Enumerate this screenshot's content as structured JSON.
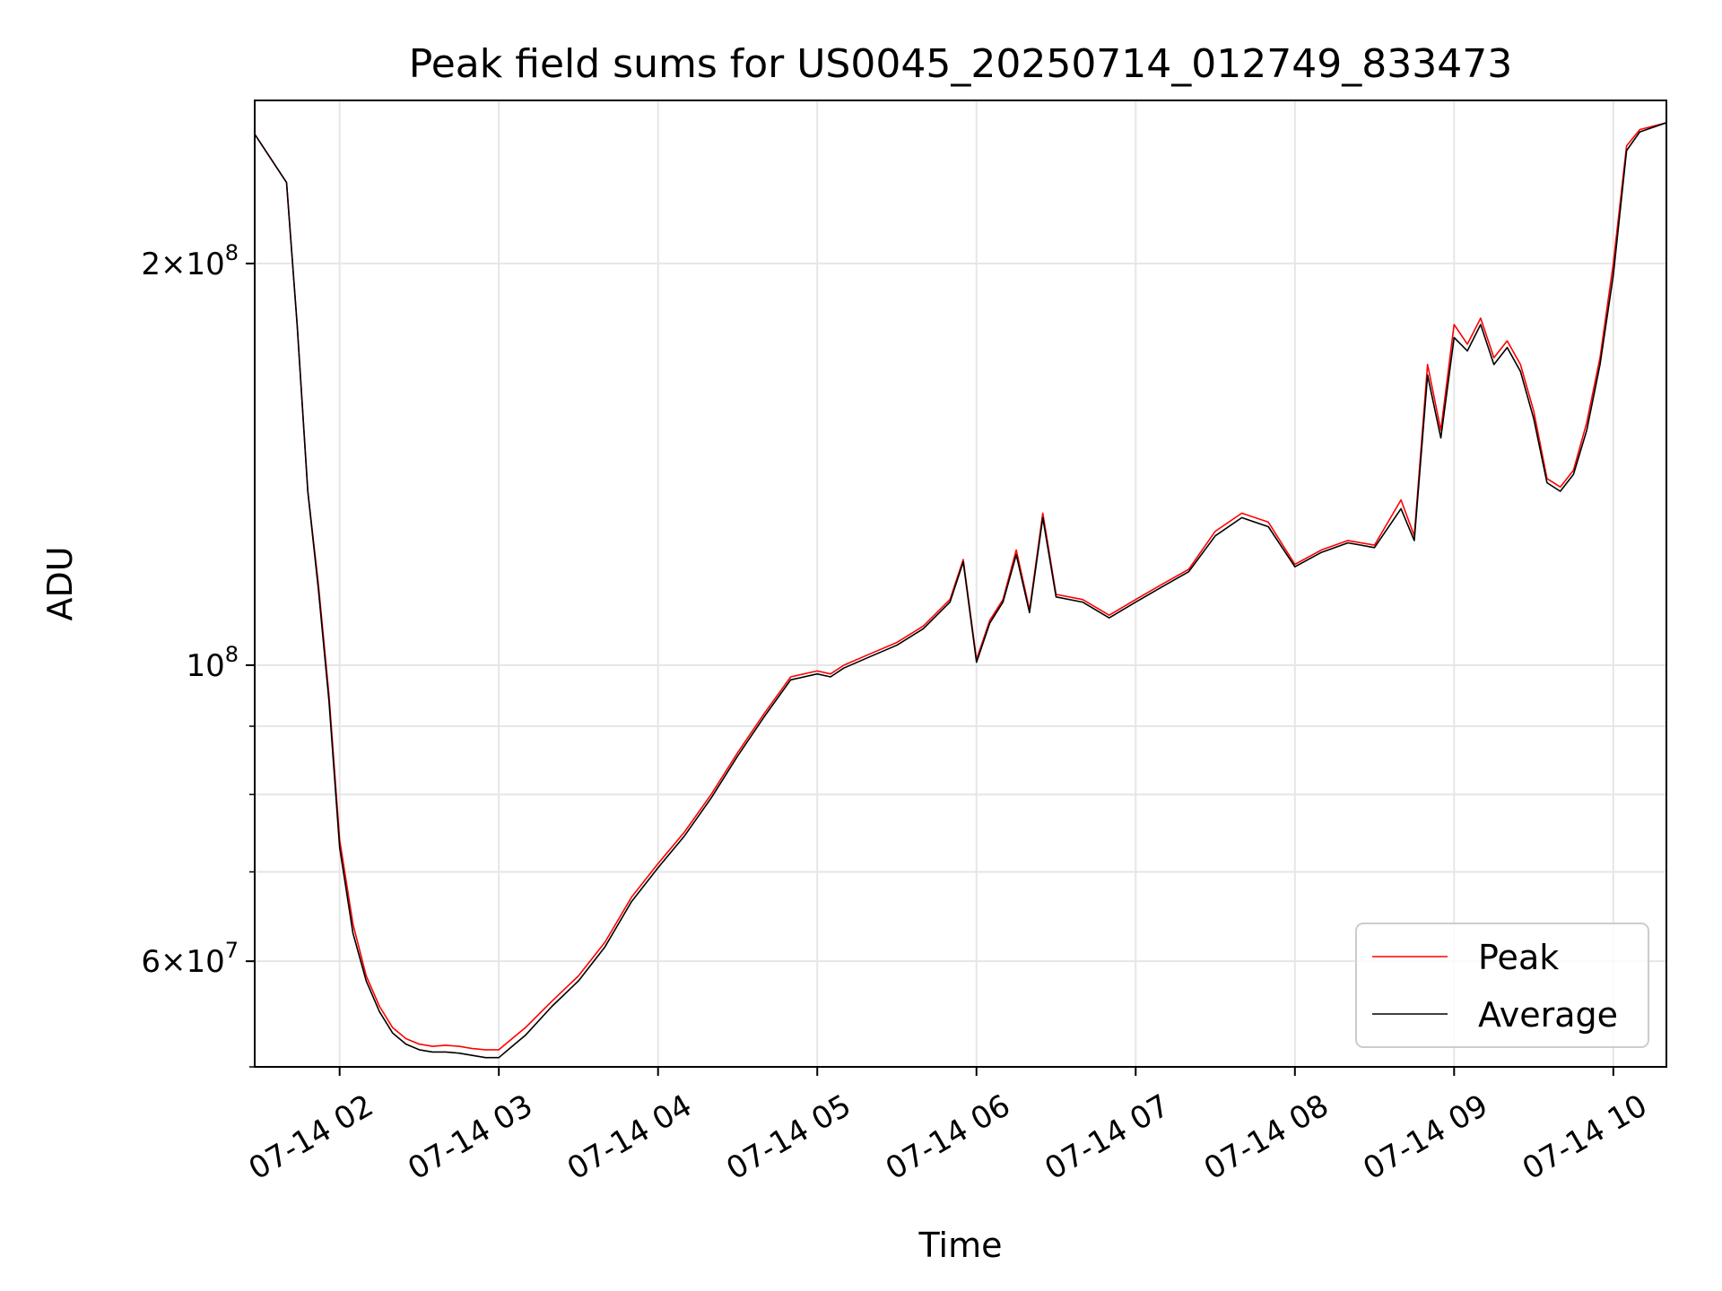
{
  "chart_data": {
    "type": "line",
    "title": "Peak field sums for US0045_20250714_012749_833473",
    "xlabel": "Time",
    "ylabel": "ADU",
    "y_scale": "log",
    "ylim": [
      50000000,
      265000000
    ],
    "xlim": [
      "2025-07-14 01:28",
      "2025-07-14 10:20"
    ],
    "grid": true,
    "legend_position": "lower right",
    "x_ticks": [
      {
        "t": "2025-07-14 02:00",
        "label": "07-14 02"
      },
      {
        "t": "2025-07-14 03:00",
        "label": "07-14 03"
      },
      {
        "t": "2025-07-14 04:00",
        "label": "07-14 04"
      },
      {
        "t": "2025-07-14 05:00",
        "label": "07-14 05"
      },
      {
        "t": "2025-07-14 06:00",
        "label": "07-14 06"
      },
      {
        "t": "2025-07-14 07:00",
        "label": "07-14 07"
      },
      {
        "t": "2025-07-14 08:00",
        "label": "07-14 08"
      },
      {
        "t": "2025-07-14 09:00",
        "label": "07-14 09"
      },
      {
        "t": "2025-07-14 10:00",
        "label": "07-14 10"
      }
    ],
    "y_ticks": [
      {
        "value": 60000000,
        "mantissa": "6",
        "base": "10",
        "exp": "7"
      },
      {
        "value": 100000000,
        "mantissa": "",
        "base": "10",
        "exp": "8"
      },
      {
        "value": 200000000,
        "mantissa": "2",
        "base": "10",
        "exp": "8"
      }
    ],
    "y_minor_ticks": [
      50000000,
      70000000,
      80000000,
      90000000
    ],
    "x": [
      "2025-07-14 01:28",
      "2025-07-14 01:40",
      "2025-07-14 01:44",
      "2025-07-14 01:48",
      "2025-07-14 01:52",
      "2025-07-14 01:56",
      "2025-07-14 02:00",
      "2025-07-14 02:05",
      "2025-07-14 02:10",
      "2025-07-14 02:15",
      "2025-07-14 02:20",
      "2025-07-14 02:25",
      "2025-07-14 02:30",
      "2025-07-14 02:35",
      "2025-07-14 02:40",
      "2025-07-14 02:45",
      "2025-07-14 02:50",
      "2025-07-14 02:55",
      "2025-07-14 03:00",
      "2025-07-14 03:05",
      "2025-07-14 03:10",
      "2025-07-14 03:20",
      "2025-07-14 03:30",
      "2025-07-14 03:40",
      "2025-07-14 03:50",
      "2025-07-14 04:00",
      "2025-07-14 04:10",
      "2025-07-14 04:20",
      "2025-07-14 04:30",
      "2025-07-14 04:40",
      "2025-07-14 04:50",
      "2025-07-14 05:00",
      "2025-07-14 05:05",
      "2025-07-14 05:10",
      "2025-07-14 05:20",
      "2025-07-14 05:30",
      "2025-07-14 05:40",
      "2025-07-14 05:50",
      "2025-07-14 05:55",
      "2025-07-14 06:00",
      "2025-07-14 06:05",
      "2025-07-14 06:10",
      "2025-07-14 06:15",
      "2025-07-14 06:20",
      "2025-07-14 06:25",
      "2025-07-14 06:30",
      "2025-07-14 06:40",
      "2025-07-14 06:50",
      "2025-07-14 07:00",
      "2025-07-14 07:10",
      "2025-07-14 07:20",
      "2025-07-14 07:30",
      "2025-07-14 07:40",
      "2025-07-14 07:50",
      "2025-07-14 08:00",
      "2025-07-14 08:10",
      "2025-07-14 08:20",
      "2025-07-14 08:30",
      "2025-07-14 08:40",
      "2025-07-14 08:45",
      "2025-07-14 08:50",
      "2025-07-14 08:55",
      "2025-07-14 09:00",
      "2025-07-14 09:05",
      "2025-07-14 09:10",
      "2025-07-14 09:15",
      "2025-07-14 09:20",
      "2025-07-14 09:25",
      "2025-07-14 09:30",
      "2025-07-14 09:35",
      "2025-07-14 09:40",
      "2025-07-14 09:45",
      "2025-07-14 09:50",
      "2025-07-14 09:55",
      "2025-07-14 10:00",
      "2025-07-14 10:05",
      "2025-07-14 10:10",
      "2025-07-14 10:20"
    ],
    "series": [
      {
        "name": "Peak",
        "color": "#ff0000",
        "values": [
          250000000,
          230000000,
          180000000,
          135000000,
          115000000,
          95000000,
          74000000,
          64000000,
          58500000,
          55500000,
          53500000,
          52500000,
          52000000,
          51800000,
          51900000,
          51800000,
          51600000,
          51500000,
          51500000,
          52500000,
          53500000,
          56000000,
          58500000,
          62000000,
          67000000,
          71000000,
          75000000,
          80000000,
          86000000,
          92000000,
          98000000,
          99000000,
          98500000,
          100000000,
          102000000,
          104000000,
          107000000,
          112000000,
          120000000,
          101000000,
          108000000,
          112000000,
          122000000,
          110000000,
          130000000,
          113000000,
          112000000,
          109000000,
          112000000,
          115000000,
          118000000,
          126000000,
          130000000,
          128000000,
          119000000,
          122000000,
          124000000,
          123000000,
          133000000,
          125000000,
          168000000,
          150000000,
          180000000,
          174000000,
          182000000,
          170000000,
          175000000,
          168000000,
          155000000,
          138000000,
          136000000,
          140000000,
          152000000,
          170000000,
          200000000,
          245000000,
          252000000,
          255000000
        ]
      },
      {
        "name": "Average",
        "color": "#000000",
        "values": [
          250000000,
          230000000,
          180000000,
          135000000,
          114000000,
          94000000,
          73000000,
          63000000,
          58000000,
          55000000,
          53000000,
          52000000,
          51500000,
          51300000,
          51300000,
          51200000,
          51000000,
          50800000,
          50800000,
          51800000,
          52800000,
          55500000,
          58000000,
          61500000,
          66500000,
          70500000,
          74500000,
          79500000,
          85500000,
          91500000,
          97500000,
          98500000,
          98000000,
          99500000,
          101500000,
          103500000,
          106500000,
          111500000,
          119500000,
          100500000,
          107500000,
          111500000,
          121000000,
          109500000,
          129000000,
          112500000,
          111500000,
          108500000,
          111500000,
          114500000,
          117500000,
          125000000,
          129000000,
          127000000,
          118500000,
          121500000,
          123500000,
          122500000,
          131000000,
          124000000,
          165000000,
          148000000,
          176000000,
          172000000,
          180000000,
          168000000,
          173000000,
          166000000,
          153000000,
          137000000,
          135000000,
          139000000,
          150000000,
          168000000,
          196000000,
          243000000,
          251000000,
          255000000
        ]
      }
    ]
  }
}
